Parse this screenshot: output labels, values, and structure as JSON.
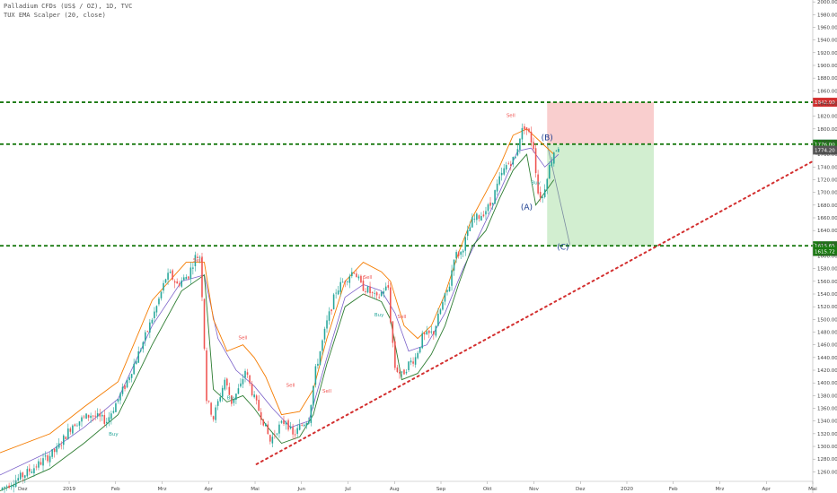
{
  "legend": {
    "symbol_line": "Palladium CFDs (US$ / OZ), 1D, TVC",
    "indicator_line": "TUX EMA Scalper (20, close)"
  },
  "colors": {
    "up": "#26a69a",
    "down": "#ef5350",
    "level": "#1b7a12",
    "trend": "#d32f2f",
    "stop_zone": "#f8c9c9",
    "target_zone": "#cdeccb",
    "wave_label": "#1b3d8f",
    "ema_upper": "#f57c00",
    "ema_lower": "#2e7d32",
    "ema_mid": "#7b61c9",
    "sell": "#ef5350",
    "buy": "#26a69a"
  },
  "chart_data": {
    "type": "candlestick",
    "x_ticks": [
      "Dez",
      "2019",
      "Feb",
      "Mrz",
      "Apr",
      "Mai",
      "Jun",
      "Jul",
      "Aug",
      "Sep",
      "Okt",
      "Nov",
      "Dez",
      "2020",
      "Feb",
      "Mrz",
      "Apr",
      "Mai"
    ],
    "y_ticks": [
      1260,
      1280,
      1300,
      1320,
      1340,
      1360,
      1380,
      1400,
      1420,
      1440,
      1460,
      1480,
      1500,
      1520,
      1540,
      1560,
      1580,
      1600,
      1620,
      1640,
      1660,
      1680,
      1700,
      1720,
      1740,
      1760,
      1780,
      1800,
      1820,
      1840,
      1860,
      1880,
      1900,
      1920,
      1940,
      1960,
      1980,
      2000
    ],
    "ylim": [
      1245,
      2003
    ],
    "xlim": [
      -12,
      346
    ],
    "levels": [
      {
        "price": 1842,
        "label": "1842.00",
        "color": "#d32f2f"
      },
      {
        "price": 1776,
        "label": "1776.00",
        "color": "#1f7a8c"
      },
      {
        "price": 1616,
        "label": "1615.65",
        "color": "#1b7a12"
      }
    ],
    "right_tags": [
      {
        "price": 1776,
        "label": "1776.00",
        "color": "#1b7a12"
      },
      {
        "price": 1766.5,
        "label": "1774.20",
        "color": "#555555"
      },
      {
        "price": 1607,
        "label": "1615.72",
        "color": "#1b7a12"
      }
    ],
    "position": {
      "x0": 229,
      "x1": 276,
      "entry": 1776,
      "stop": 1842,
      "target": 1615.65
    },
    "trendline": {
      "x0": 101,
      "y0": 1272,
      "x1": 346,
      "y1": 1749
    },
    "projection": {
      "x0": 229,
      "y0": 1776,
      "x1": 239,
      "y1": 1618
    },
    "wave_labels": [
      {
        "text": "(A)",
        "x": 220,
        "y": 1673
      },
      {
        "text": "(B)",
        "x": 229,
        "y": 1782
      },
      {
        "text": "(C)",
        "x": 236,
        "y": 1610
      }
    ],
    "signals": [
      {
        "text": "Buy",
        "x": 38,
        "y": 1317
      },
      {
        "text": "Sell",
        "x": 75,
        "y": 1591
      },
      {
        "text": "Buy",
        "x": 90,
        "y": 1374
      },
      {
        "text": "Sell",
        "x": 95,
        "y": 1469
      },
      {
        "text": "Sell",
        "x": 116,
        "y": 1394
      },
      {
        "text": "Sell",
        "x": 132,
        "y": 1385
      },
      {
        "text": "Sell",
        "x": 150,
        "y": 1564
      },
      {
        "text": "Buy",
        "x": 155,
        "y": 1505
      },
      {
        "text": "Sell",
        "x": 165,
        "y": 1502
      },
      {
        "text": "Sell",
        "x": 213,
        "y": 1819
      },
      {
        "text": "Buy",
        "x": 224,
        "y": 1713
      }
    ],
    "anchors": [
      [
        -12,
        1232
      ],
      [
        -2,
        1254
      ],
      [
        5,
        1272
      ],
      [
        13,
        1295
      ],
      [
        20,
        1335
      ],
      [
        28,
        1350
      ],
      [
        35,
        1340
      ],
      [
        43,
        1395
      ],
      [
        50,
        1455
      ],
      [
        57,
        1520
      ],
      [
        61,
        1565
      ],
      [
        63,
        1570
      ],
      [
        66,
        1555
      ],
      [
        71,
        1570
      ],
      [
        74,
        1598
      ],
      [
        76,
        1600
      ],
      [
        77,
        1540
      ],
      [
        79,
        1375
      ],
      [
        82,
        1345
      ],
      [
        87,
        1405
      ],
      [
        90,
        1370
      ],
      [
        94,
        1395
      ],
      [
        96,
        1420
      ],
      [
        100,
        1375
      ],
      [
        104,
        1340
      ],
      [
        107,
        1308
      ],
      [
        110,
        1327
      ],
      [
        114,
        1342
      ],
      [
        117,
        1316
      ],
      [
        120,
        1330
      ],
      [
        124,
        1345
      ],
      [
        127,
        1420
      ],
      [
        132,
        1495
      ],
      [
        136,
        1545
      ],
      [
        140,
        1563
      ],
      [
        144,
        1578
      ],
      [
        147,
        1553
      ],
      [
        150,
        1546
      ],
      [
        154,
        1532
      ],
      [
        157,
        1547
      ],
      [
        159,
        1550
      ],
      [
        160,
        1500
      ],
      [
        162,
        1425
      ],
      [
        165,
        1412
      ],
      [
        168,
        1430
      ],
      [
        171,
        1440
      ],
      [
        174,
        1472
      ],
      [
        177,
        1476
      ],
      [
        179,
        1480
      ],
      [
        182,
        1515
      ],
      [
        186,
        1555
      ],
      [
        188,
        1600
      ],
      [
        191,
        1605
      ],
      [
        193,
        1625
      ],
      [
        196,
        1655
      ],
      [
        200,
        1665
      ],
      [
        204,
        1680
      ],
      [
        208,
        1720
      ],
      [
        211,
        1742
      ],
      [
        215,
        1755
      ],
      [
        217,
        1789
      ],
      [
        219,
        1805
      ],
      [
        221,
        1792
      ],
      [
        223,
        1772
      ],
      [
        225,
        1700
      ],
      [
        227,
        1692
      ],
      [
        229,
        1728
      ],
      [
        232,
        1765
      ],
      [
        234,
        1773
      ]
    ],
    "ema_upper": [
      [
        -12,
        1290
      ],
      [
        10,
        1320
      ],
      [
        25,
        1362
      ],
      [
        40,
        1402
      ],
      [
        55,
        1530
      ],
      [
        70,
        1590
      ],
      [
        78,
        1590
      ],
      [
        82,
        1500
      ],
      [
        88,
        1450
      ],
      [
        95,
        1460
      ],
      [
        100,
        1440
      ],
      [
        105,
        1410
      ],
      [
        112,
        1350
      ],
      [
        120,
        1355
      ],
      [
        126,
        1390
      ],
      [
        132,
        1470
      ],
      [
        140,
        1560
      ],
      [
        148,
        1590
      ],
      [
        156,
        1575
      ],
      [
        160,
        1560
      ],
      [
        166,
        1490
      ],
      [
        172,
        1470
      ],
      [
        178,
        1490
      ],
      [
        184,
        1540
      ],
      [
        190,
        1605
      ],
      [
        196,
        1660
      ],
      [
        202,
        1700
      ],
      [
        208,
        1740
      ],
      [
        214,
        1790
      ],
      [
        220,
        1800
      ],
      [
        226,
        1780
      ],
      [
        232,
        1760
      ]
    ],
    "ema_lower": [
      [
        -12,
        1230
      ],
      [
        10,
        1265
      ],
      [
        25,
        1305
      ],
      [
        40,
        1350
      ],
      [
        55,
        1460
      ],
      [
        68,
        1545
      ],
      [
        78,
        1570
      ],
      [
        82,
        1390
      ],
      [
        88,
        1370
      ],
      [
        95,
        1380
      ],
      [
        100,
        1360
      ],
      [
        106,
        1330
      ],
      [
        112,
        1305
      ],
      [
        120,
        1315
      ],
      [
        126,
        1350
      ],
      [
        132,
        1430
      ],
      [
        140,
        1520
      ],
      [
        148,
        1540
      ],
      [
        156,
        1528
      ],
      [
        160,
        1500
      ],
      [
        165,
        1405
      ],
      [
        172,
        1415
      ],
      [
        178,
        1445
      ],
      [
        184,
        1490
      ],
      [
        190,
        1555
      ],
      [
        196,
        1615
      ],
      [
        202,
        1640
      ],
      [
        208,
        1690
      ],
      [
        214,
        1735
      ],
      [
        220,
        1760
      ],
      [
        224,
        1680
      ],
      [
        232,
        1720
      ]
    ],
    "ema_mid": [
      [
        -12,
        1255
      ],
      [
        10,
        1292
      ],
      [
        25,
        1330
      ],
      [
        40,
        1375
      ],
      [
        55,
        1490
      ],
      [
        68,
        1560
      ],
      [
        78,
        1570
      ],
      [
        84,
        1470
      ],
      [
        92,
        1420
      ],
      [
        100,
        1395
      ],
      [
        108,
        1360
      ],
      [
        116,
        1330
      ],
      [
        124,
        1340
      ],
      [
        132,
        1440
      ],
      [
        140,
        1535
      ],
      [
        148,
        1555
      ],
      [
        156,
        1545
      ],
      [
        162,
        1510
      ],
      [
        168,
        1450
      ],
      [
        176,
        1460
      ],
      [
        184,
        1510
      ],
      [
        192,
        1580
      ],
      [
        200,
        1640
      ],
      [
        208,
        1700
      ],
      [
        216,
        1765
      ],
      [
        222,
        1770
      ],
      [
        228,
        1740
      ],
      [
        234,
        1760
      ]
    ]
  }
}
